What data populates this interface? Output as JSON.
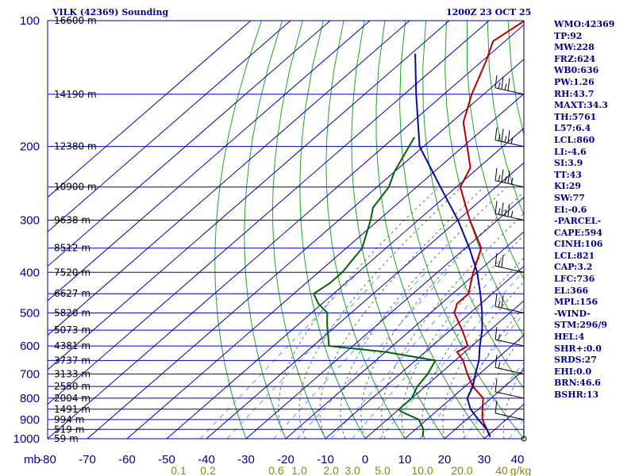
{
  "header": {
    "title_left": "VILK (42369) Sounding",
    "title_right": "1200Z 23 OCT 25"
  },
  "chart_data": {
    "type": "line",
    "title": "VILK (42369) Sounding",
    "subtitle": "1200Z 23 OCT 25",
    "xlabel": "",
    "ylabel": "mb",
    "ylim": [
      1000,
      100
    ],
    "xlim": [
      -80,
      40
    ],
    "y_scale": "log-pressure skew-T",
    "pressure_ticks": [
      "100",
      "200",
      "300",
      "400",
      "500",
      "600",
      "700",
      "800",
      "900",
      "1000"
    ],
    "temperature_ticks": [
      "-80",
      "-70",
      "-60",
      "-50",
      "-40",
      "-30",
      "-20",
      "-10",
      "0",
      "10",
      "20",
      "30",
      "40"
    ],
    "pressure_axis_label": "mb",
    "mixing_ratio_ticks": [
      "0.1",
      "0.2",
      "0.6",
      "1.0",
      "2.0",
      "3.0",
      "5.0",
      "10.0",
      "20.0",
      "40"
    ],
    "mixing_ratio_unit": "g/kg",
    "height_labels": [
      {
        "p": 100,
        "label": "16600 m"
      },
      {
        "p": 150,
        "label": "14190 m"
      },
      {
        "p": 200,
        "label": "12380 m"
      },
      {
        "p": 250,
        "label": "10900 m"
      },
      {
        "p": 300,
        "label": "9638 m"
      },
      {
        "p": 350,
        "label": "8512 m"
      },
      {
        "p": 400,
        "label": "7520 m"
      },
      {
        "p": 450,
        "label": "6627 m"
      },
      {
        "p": 500,
        "label": "5820 m"
      },
      {
        "p": 550,
        "label": "5073 m"
      },
      {
        "p": 600,
        "label": "4381 m"
      },
      {
        "p": 650,
        "label": "3737 m"
      },
      {
        "p": 700,
        "label": "3133 m"
      },
      {
        "p": 750,
        "label": "2550 m"
      },
      {
        "p": 800,
        "label": "2004 m"
      },
      {
        "p": 850,
        "label": "1491 m"
      },
      {
        "p": 900,
        "label": "994 m"
      },
      {
        "p": 950,
        "label": "519 m"
      },
      {
        "p": 1000,
        "label": "59 m"
      }
    ],
    "series": [
      {
        "name": "",
        "color": "#b40000",
        "points": [
          [
            100,
            -81
          ],
          [
            112,
            -83
          ],
          [
            125,
            -79
          ],
          [
            150,
            -73
          ],
          [
            175,
            -67
          ],
          [
            200,
            -59
          ],
          [
            225,
            -52
          ],
          [
            250,
            -49
          ],
          [
            300,
            -37
          ],
          [
            350,
            -26
          ],
          [
            400,
            -21
          ],
          [
            450,
            -16
          ],
          [
            475,
            -16
          ],
          [
            500,
            -14
          ],
          [
            550,
            -7
          ],
          [
            600,
            -1
          ],
          [
            620,
            -2
          ],
          [
            650,
            2
          ],
          [
            700,
            7
          ],
          [
            750,
            12
          ],
          [
            800,
            18
          ],
          [
            850,
            21
          ],
          [
            900,
            24
          ],
          [
            950,
            28
          ],
          [
            990,
            31
          ]
        ]
      },
      {
        "name": "",
        "color": "#006400",
        "points": [
          [
            190,
            -75
          ],
          [
            230,
            -70
          ],
          [
            250,
            -67
          ],
          [
            280,
            -65
          ],
          [
            300,
            -62
          ],
          [
            350,
            -56
          ],
          [
            400,
            -54
          ],
          [
            425,
            -54
          ],
          [
            450,
            -55
          ],
          [
            475,
            -51
          ],
          [
            500,
            -46
          ],
          [
            530,
            -43
          ],
          [
            600,
            -36
          ],
          [
            620,
            -20
          ],
          [
            650,
            -5
          ],
          [
            700,
            -3
          ],
          [
            750,
            -2
          ],
          [
            800,
            0
          ],
          [
            850,
            0
          ],
          [
            860,
            1
          ],
          [
            900,
            8
          ],
          [
            950,
            12
          ],
          [
            990,
            14
          ]
        ]
      },
      {
        "name": "",
        "color": "#0a0a96",
        "points": [
          [
            120,
            -99
          ],
          [
            150,
            -87
          ],
          [
            200,
            -71
          ],
          [
            250,
            -54
          ],
          [
            300,
            -40
          ],
          [
            350,
            -29
          ],
          [
            400,
            -20
          ],
          [
            450,
            -13
          ],
          [
            500,
            -7
          ],
          [
            550,
            -2
          ],
          [
            600,
            2
          ],
          [
            650,
            6
          ],
          [
            700,
            9
          ],
          [
            750,
            12
          ],
          [
            800,
            14
          ],
          [
            850,
            18
          ],
          [
            900,
            23
          ],
          [
            950,
            28
          ],
          [
            990,
            31
          ]
        ]
      }
    ],
    "wind_barbs": [
      {
        "p": 150,
        "speed": 25
      },
      {
        "p": 200,
        "speed": 30
      },
      {
        "p": 250,
        "speed": 30
      },
      {
        "p": 300,
        "speed": 30
      },
      {
        "p": 400,
        "speed": 15
      },
      {
        "p": 500,
        "speed": 15
      },
      {
        "p": 600,
        "speed": 10
      },
      {
        "p": 700,
        "speed": 10
      },
      {
        "p": 800,
        "speed": 5
      },
      {
        "p": 900,
        "speed": 5
      },
      {
        "p": 1000,
        "speed": 0
      }
    ]
  },
  "indices": [
    "WMO:42369",
    "TP:92",
    "MW:228",
    "FRZ:624",
    "WB0:636",
    "PW:1.26",
    "RH:43.7",
    "MAXT:34.3",
    "TH:5761",
    "L57:6.4",
    "LCL:860",
    "LI:-4.6",
    "SI:3.9",
    "TT:43",
    "KI:29",
    "SW:77",
    "EI:-0.6",
    "-PARCEL-",
    "CAPE:594",
    "CINH:106",
    "LCL:821",
    "CAP:3.2",
    "LFC:736",
    "EL:366",
    "MPL:156",
    "-WIND-",
    "STM:296/9",
    "HEL:4",
    "SHR+:0.0",
    "SRDS:27",
    "EHI:0.0",
    "BRN:46.6",
    "BSHR:13"
  ]
}
